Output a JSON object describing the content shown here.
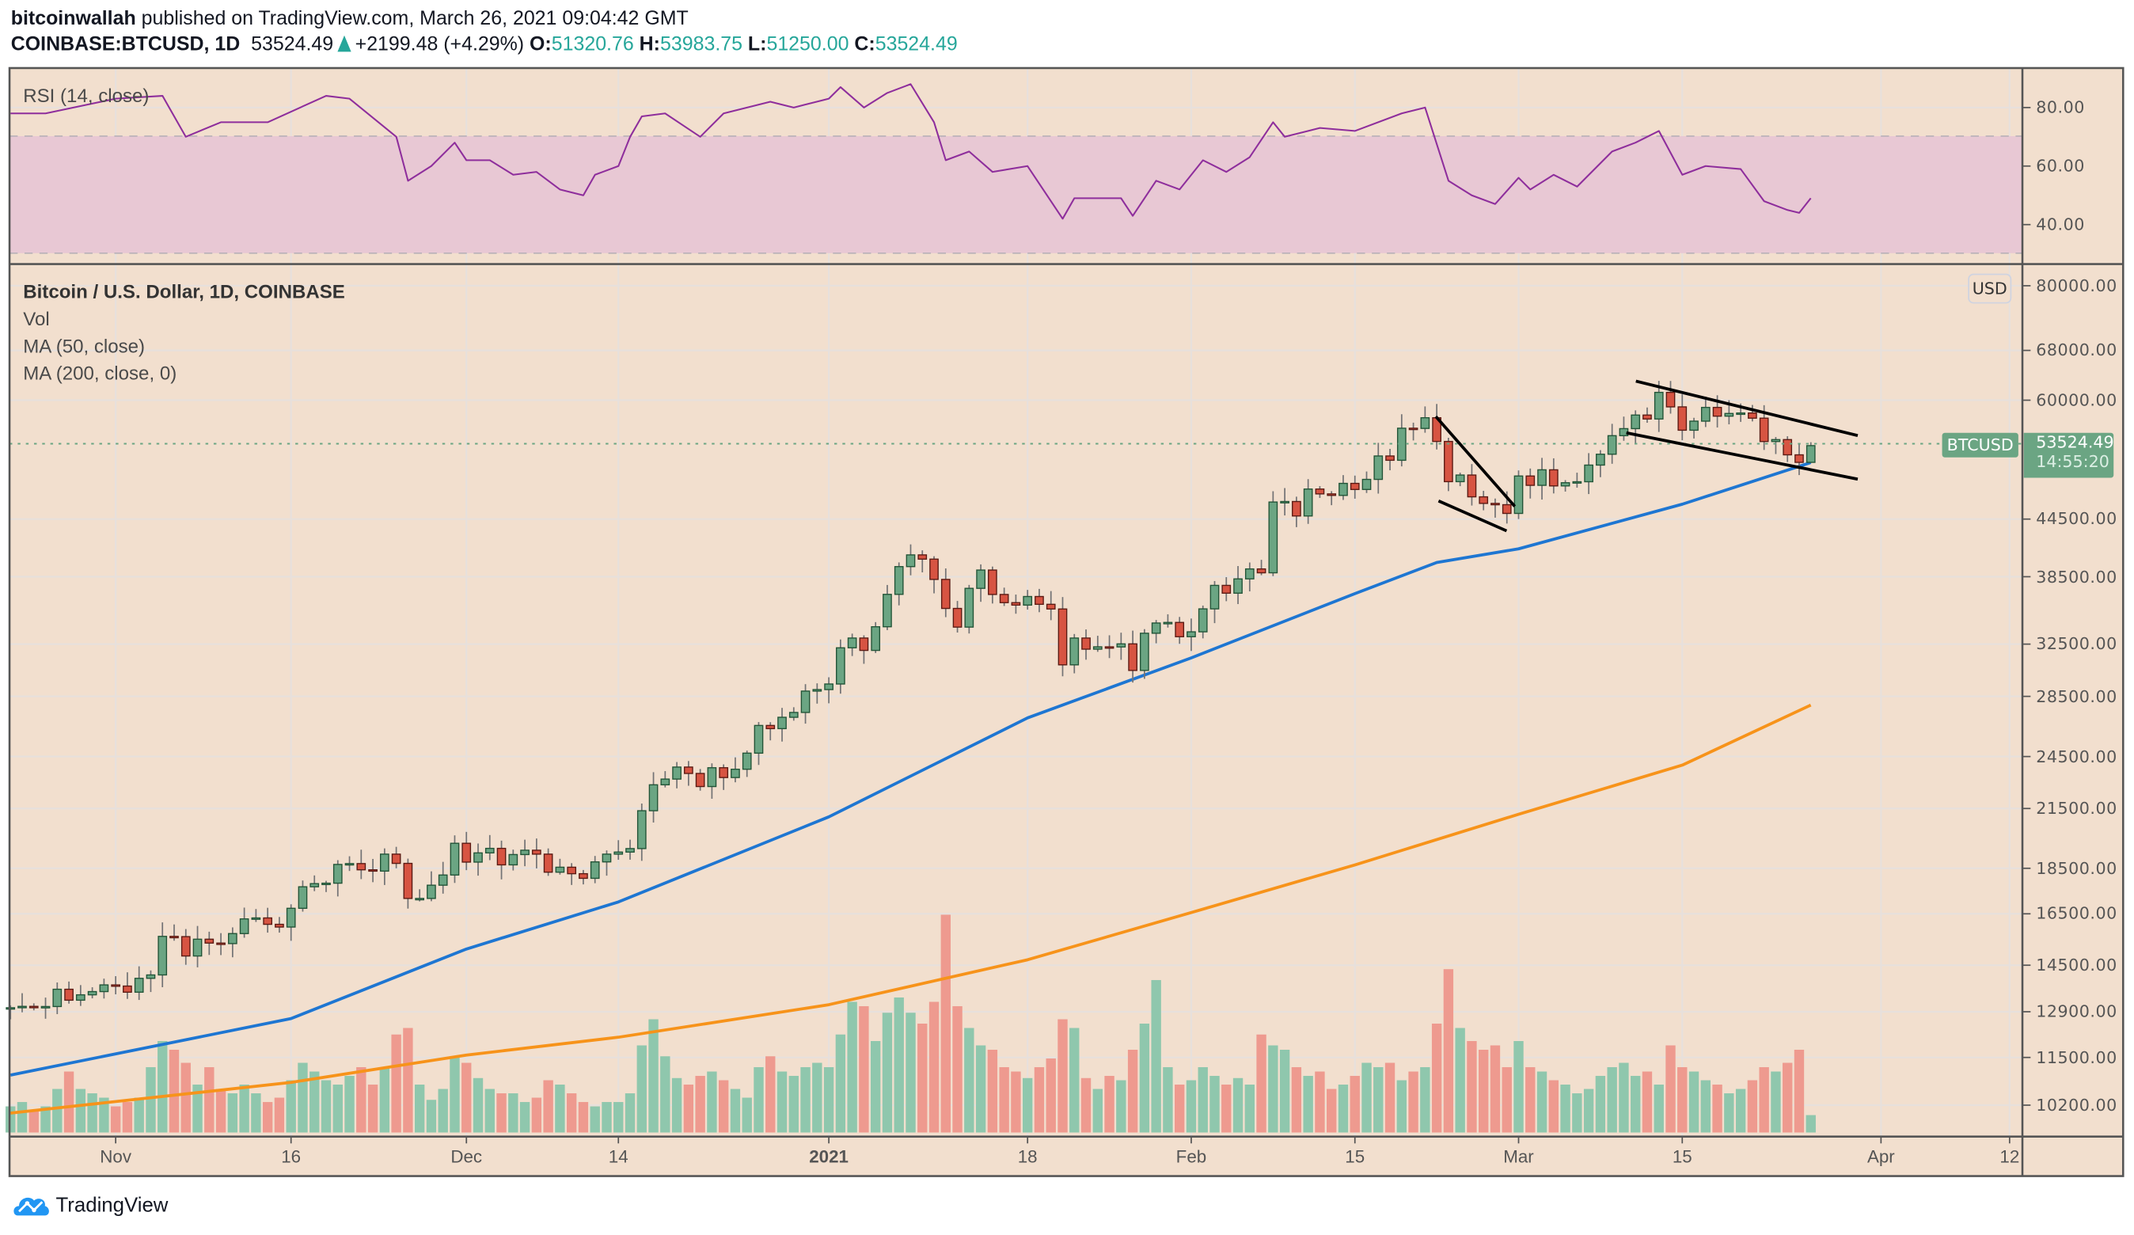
{
  "header": {
    "author": "bitcoinwallah",
    "published_text": "published on TradingView.com, March 26, 2021 09:04:42 GMT",
    "symbol": "COINBASE:BTCUSD, 1D",
    "last": "53524.49",
    "change": "+2199.48 (+4.29%)",
    "o_label": "O:",
    "o": "51320.76",
    "h_label": "H:",
    "h": "53983.75",
    "l_label": "L:",
    "l": "51250.00",
    "c_label": "C:",
    "c": "53524.49"
  },
  "legend": {
    "rsi": "RSI (14, close)",
    "main": "Bitcoin / U.S. Dollar, 1D, COINBASE",
    "vol": "Vol",
    "ma50": "MA (50, close)",
    "ma200": "MA (200, close, 0)"
  },
  "price_tag": {
    "symbol": "BTCUSD",
    "price": "53524.49",
    "countdown": "14:55:20"
  },
  "currency_button": "USD",
  "brand": "TradingView",
  "colors": {
    "background": "#f2dfce",
    "up": "#6ba583",
    "up_border": "#225437",
    "down": "#d75442",
    "down_border": "#5b1a13",
    "wick": "#737375",
    "vol_up": "#8fc7ad",
    "vol_down": "#ee9a8f",
    "ma50": "#1e76d2",
    "ma200": "#f7931a",
    "rsi_line": "#8e2e9c",
    "rsi_band": "#e8c8d4",
    "grid": "#e7e0dc",
    "axis": "#555555"
  },
  "chart_data": [
    {
      "type": "candlestick",
      "title": "Bitcoin / U.S. Dollar, 1D, COINBASE",
      "y_scale": "log",
      "ylim": [
        9500,
        86000
      ],
      "grid": true,
      "start_date": "2020-10-23",
      "end_date": "2021-03-26",
      "close": [
        13031,
        13075,
        13040,
        13070,
        13650,
        13280,
        13460,
        13570,
        13800,
        13760,
        13550,
        14030,
        14150,
        15590,
        15580,
        14840,
        15480,
        15330,
        15310,
        15700,
        16290,
        16330,
        16070,
        15960,
        16730,
        17660,
        17800,
        17820,
        18680,
        18720,
        18430,
        18370,
        19170,
        18730,
        17150,
        17150,
        17730,
        18190,
        19700,
        18790,
        19230,
        19450,
        18660,
        19150,
        19360,
        19170,
        18320,
        18550,
        18250,
        18040,
        18800,
        19170,
        19270,
        19440,
        21380,
        22820,
        23150,
        23860,
        23480,
        22720,
        23820,
        23240,
        23730,
        24710,
        26490,
        26280,
        27040,
        27370,
        28880,
        28990,
        29400,
        32200,
        33000,
        31990,
        33950,
        36830,
        39490,
        40670,
        40240,
        38240,
        35550,
        33920,
        37390,
        39150,
        36820,
        36070,
        35850,
        36630,
        35920,
        35500,
        30850,
        33000,
        32090,
        32280,
        32270,
        32520,
        30420,
        33400,
        34270,
        34320,
        33110,
        33520,
        35510,
        37670,
        36940,
        38290,
        39260,
        38880,
        46450,
        46510,
        44850,
        47990,
        47410,
        47230,
        48680,
        47940,
        49170,
        52150,
        51590,
        55920,
        55890,
        57410,
        54090,
        48890,
        49710,
        47060,
        46290,
        46140,
        45140,
        49590,
        48440,
        50370,
        48370,
        48760,
        48880,
        50970,
        52380,
        54880,
        55860,
        57800,
        57230,
        61190,
        59000,
        55640,
        56920,
        58920,
        57640,
        58030,
        58100,
        57350,
        54080,
        54340,
        52300,
        51320,
        53524.49
      ],
      "last_candle": {
        "open": 51320.76,
        "high": 53983.75,
        "low": 51250.0,
        "close": 53524.49
      },
      "volume_relative": [
        12,
        14,
        10,
        12,
        20,
        28,
        20,
        18,
        16,
        12,
        14,
        16,
        30,
        42,
        38,
        32,
        22,
        30,
        20,
        18,
        22,
        18,
        14,
        16,
        24,
        32,
        28,
        24,
        22,
        26,
        30,
        22,
        30,
        45,
        48,
        22,
        15,
        20,
        35,
        32,
        25,
        20,
        18,
        18,
        14,
        16,
        24,
        22,
        18,
        14,
        12,
        14,
        14,
        18,
        40,
        52,
        35,
        25,
        22,
        26,
        28,
        24,
        20,
        16,
        30,
        35,
        28,
        26,
        30,
        32,
        30,
        45,
        60,
        58,
        42,
        55,
        62,
        55,
        50,
        60,
        100,
        58,
        48,
        40,
        38,
        30,
        28,
        25,
        30,
        34,
        52,
        48,
        25,
        20,
        26,
        24,
        38,
        50,
        70,
        30,
        22,
        24,
        30,
        26,
        22,
        25,
        22,
        45,
        40,
        38,
        30,
        26,
        28,
        20,
        22,
        26,
        32,
        30,
        32,
        24,
        28,
        30,
        50,
        75,
        48,
        42,
        38,
        40,
        30,
        42,
        30,
        28,
        24,
        22,
        18,
        20,
        26,
        30,
        32,
        26,
        28,
        22,
        40,
        30,
        28,
        24,
        22,
        18,
        20,
        24,
        30,
        28,
        32,
        38,
        8
      ],
      "ma50": [
        [
          "2020-10-23",
          11000
        ],
        [
          "2020-11-16",
          12680
        ],
        [
          "2020-12-01",
          15100
        ],
        [
          "2020-12-14",
          17000
        ],
        [
          "2021-01-01",
          21050
        ],
        [
          "2021-01-18",
          27000
        ],
        [
          "2021-02-01",
          31400
        ],
        [
          "2021-02-15",
          36900
        ],
        [
          "2021-02-22",
          39900
        ],
        [
          "2021-03-01",
          41300
        ],
        [
          "2021-03-15",
          46200
        ],
        [
          "2021-03-26",
          51300
        ]
      ],
      "ma200": [
        [
          "2020-10-23",
          10000
        ],
        [
          "2020-11-16",
          10800
        ],
        [
          "2020-12-01",
          11570
        ],
        [
          "2020-12-14",
          12100
        ],
        [
          "2021-01-01",
          13130
        ],
        [
          "2021-01-18",
          14700
        ],
        [
          "2021-02-01",
          16550
        ],
        [
          "2021-02-15",
          18660
        ],
        [
          "2021-03-01",
          21190
        ],
        [
          "2021-03-15",
          23980
        ],
        [
          "2021-03-26",
          27880
        ]
      ],
      "y_ticks": [
        "80000.00",
        "68000.00",
        "60000.00",
        "44500.00",
        "38500.00",
        "32500.00",
        "28500.00",
        "24500.00",
        "21500.00",
        "18500.00",
        "16500.00",
        "14500.00",
        "12900.00",
        "11500.00",
        "10200.00"
      ],
      "x_ticks": [
        {
          "label": "Nov",
          "date": "2020-11-01",
          "bold": false
        },
        {
          "label": "16",
          "date": "2020-11-16",
          "bold": false
        },
        {
          "label": "Dec",
          "date": "2020-12-01",
          "bold": false
        },
        {
          "label": "14",
          "date": "2020-12-14",
          "bold": false
        },
        {
          "label": "2021",
          "date": "2021-01-01",
          "bold": true
        },
        {
          "label": "18",
          "date": "2021-01-18",
          "bold": false
        },
        {
          "label": "Feb",
          "date": "2021-02-01",
          "bold": false
        },
        {
          "label": "15",
          "date": "2021-02-15",
          "bold": false
        },
        {
          "label": "Mar",
          "date": "2021-03-01",
          "bold": false
        },
        {
          "label": "15",
          "date": "2021-03-15",
          "bold": false
        },
        {
          "label": "Apr",
          "date": "2021-04-01",
          "bold": false
        },
        {
          "label": "12",
          "date": "2021-04-12",
          "bold": false
        }
      ]
    },
    {
      "type": "line",
      "title": "RSI (14, close)",
      "ylim": [
        26,
        93
      ],
      "band": [
        30,
        70
      ],
      "y_ticks": [
        "80.00",
        "60.00",
        "40.00"
      ],
      "points": [
        [
          "2020-10-23",
          78
        ],
        [
          "2020-10-26",
          78
        ],
        [
          "2020-11-01",
          83
        ],
        [
          "2020-11-05",
          84
        ],
        [
          "2020-11-07",
          70
        ],
        [
          "2020-11-10",
          75
        ],
        [
          "2020-11-14",
          75
        ],
        [
          "2020-11-19",
          84
        ],
        [
          "2020-11-21",
          83
        ],
        [
          "2020-11-25",
          70
        ],
        [
          "2020-11-26",
          55
        ],
        [
          "2020-11-28",
          60
        ],
        [
          "2020-11-30",
          68
        ],
        [
          "2020-12-01",
          62
        ],
        [
          "2020-12-03",
          62
        ],
        [
          "2020-12-05",
          57
        ],
        [
          "2020-12-07",
          58
        ],
        [
          "2020-12-09",
          52
        ],
        [
          "2020-12-11",
          50
        ],
        [
          "2020-12-12",
          57
        ],
        [
          "2020-12-14",
          60
        ],
        [
          "2020-12-15",
          70
        ],
        [
          "2020-12-16",
          77
        ],
        [
          "2020-12-18",
          78
        ],
        [
          "2020-12-21",
          70
        ],
        [
          "2020-12-23",
          78
        ],
        [
          "2020-12-27",
          82
        ],
        [
          "2020-12-29",
          80
        ],
        [
          "2021-01-01",
          83
        ],
        [
          "2021-01-02",
          87
        ],
        [
          "2021-01-04",
          80
        ],
        [
          "2021-01-06",
          85
        ],
        [
          "2021-01-08",
          88
        ],
        [
          "2021-01-10",
          75
        ],
        [
          "2021-01-11",
          62
        ],
        [
          "2021-01-13",
          65
        ],
        [
          "2021-01-15",
          58
        ],
        [
          "2021-01-18",
          60
        ],
        [
          "2021-01-21",
          42
        ],
        [
          "2021-01-22",
          49
        ],
        [
          "2021-01-26",
          49
        ],
        [
          "2021-01-27",
          43
        ],
        [
          "2021-01-29",
          55
        ],
        [
          "2021-01-31",
          52
        ],
        [
          "2021-02-02",
          62
        ],
        [
          "2021-02-04",
          58
        ],
        [
          "2021-02-06",
          63
        ],
        [
          "2021-02-08",
          75
        ],
        [
          "2021-02-09",
          70
        ],
        [
          "2021-02-12",
          73
        ],
        [
          "2021-02-15",
          72
        ],
        [
          "2021-02-19",
          78
        ],
        [
          "2021-02-21",
          80
        ],
        [
          "2021-02-23",
          55
        ],
        [
          "2021-02-25",
          50
        ],
        [
          "2021-02-27",
          47
        ],
        [
          "2021-03-01",
          56
        ],
        [
          "2021-03-02",
          52
        ],
        [
          "2021-03-04",
          57
        ],
        [
          "2021-03-06",
          53
        ],
        [
          "2021-03-09",
          65
        ],
        [
          "2021-03-11",
          68
        ],
        [
          "2021-03-13",
          72
        ],
        [
          "2021-03-15",
          57
        ],
        [
          "2021-03-17",
          60
        ],
        [
          "2021-03-20",
          59
        ],
        [
          "2021-03-22",
          48
        ],
        [
          "2021-03-24",
          45
        ],
        [
          "2021-03-25",
          44
        ],
        [
          "2021-03-26",
          49
        ]
      ]
    }
  ]
}
